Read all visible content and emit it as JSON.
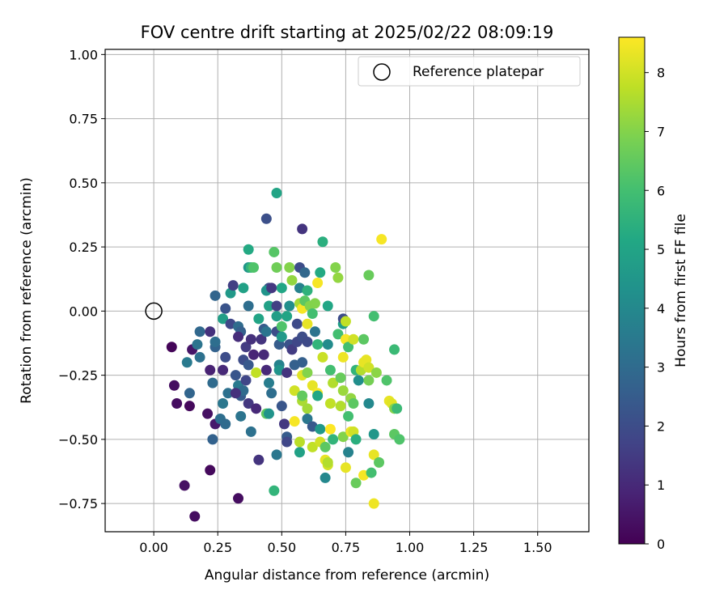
{
  "chart_data": {
    "type": "scatter",
    "title": "FOV centre drift starting at 2025/02/22 08:09:19",
    "xlabel": "Angular distance from reference (arcmin)",
    "ylabel": "Rotation from reference (arcmin)",
    "xlim": [
      -0.19,
      1.7
    ],
    "ylim": [
      -0.86,
      1.02
    ],
    "xticks": [
      0.0,
      0.25,
      0.5,
      0.75,
      1.0,
      1.25,
      1.5
    ],
    "xtick_labels": [
      "0.00",
      "0.25",
      "0.50",
      "0.75",
      "1.00",
      "1.25",
      "1.50"
    ],
    "yticks": [
      -0.75,
      -0.5,
      -0.25,
      0.0,
      0.25,
      0.5,
      0.75,
      1.0
    ],
    "ytick_labels": [
      "−0.75",
      "−0.50",
      "−0.25",
      "0.00",
      "0.25",
      "0.50",
      "0.75",
      "1.00"
    ],
    "grid": true,
    "legend": {
      "placement": "top-right",
      "entries": [
        "Reference platepar"
      ]
    },
    "reference_point": {
      "x": 0.0,
      "y": 0.0,
      "marker": "open-circle"
    },
    "colorbar": {
      "label": "Hours from first FF file",
      "colormap": "viridis",
      "range": [
        0,
        8.6
      ],
      "ticks": [
        0,
        1,
        2,
        3,
        4,
        5,
        6,
        7,
        8
      ],
      "tick_labels": [
        "0",
        "1",
        "2",
        "3",
        "4",
        "5",
        "6",
        "7",
        "8"
      ]
    },
    "points": [
      {
        "x": 0.07,
        "y": -0.14,
        "t": 0.1
      },
      {
        "x": 0.08,
        "y": -0.29,
        "t": 0.3
      },
      {
        "x": 0.09,
        "y": -0.36,
        "t": 0.3
      },
      {
        "x": 0.14,
        "y": -0.37,
        "t": 0.2
      },
      {
        "x": 0.12,
        "y": -0.68,
        "t": 0.4
      },
      {
        "x": 0.16,
        "y": -0.8,
        "t": 0.3
      },
      {
        "x": 0.22,
        "y": -0.62,
        "t": 0.2
      },
      {
        "x": 0.33,
        "y": -0.73,
        "t": 0.3
      },
      {
        "x": 0.15,
        "y": -0.15,
        "t": 0.5
      },
      {
        "x": 0.21,
        "y": -0.4,
        "t": 0.4
      },
      {
        "x": 0.24,
        "y": -0.44,
        "t": 0.6
      },
      {
        "x": 0.22,
        "y": -0.23,
        "t": 0.8
      },
      {
        "x": 0.18,
        "y": -0.18,
        "t": 3.2
      },
      {
        "x": 0.13,
        "y": -0.2,
        "t": 3.5
      },
      {
        "x": 0.14,
        "y": -0.32,
        "t": 2.8
      },
      {
        "x": 0.18,
        "y": -0.08,
        "t": 2.9
      },
      {
        "x": 0.17,
        "y": -0.13,
        "t": 3.3
      },
      {
        "x": 0.22,
        "y": -0.08,
        "t": 1.2
      },
      {
        "x": 0.24,
        "y": -0.14,
        "t": 2.7
      },
      {
        "x": 0.24,
        "y": -0.12,
        "t": 3.1
      },
      {
        "x": 0.23,
        "y": -0.28,
        "t": 3.0
      },
      {
        "x": 0.23,
        "y": -0.5,
        "t": 2.7
      },
      {
        "x": 0.26,
        "y": -0.42,
        "t": 3.1
      },
      {
        "x": 0.27,
        "y": -0.36,
        "t": 3.4
      },
      {
        "x": 0.28,
        "y": -0.44,
        "t": 3.0
      },
      {
        "x": 0.27,
        "y": -0.23,
        "t": 1.0
      },
      {
        "x": 0.28,
        "y": -0.18,
        "t": 2.0
      },
      {
        "x": 0.29,
        "y": -0.32,
        "t": 3.2
      },
      {
        "x": 0.24,
        "y": 0.06,
        "t": 2.8
      },
      {
        "x": 0.27,
        "y": -0.03,
        "t": 4.8
      },
      {
        "x": 0.28,
        "y": 0.01,
        "t": 2.2
      },
      {
        "x": 0.3,
        "y": 0.07,
        "t": 4.6
      },
      {
        "x": 0.31,
        "y": 0.1,
        "t": 1.6
      },
      {
        "x": 0.3,
        "y": -0.05,
        "t": 1.8
      },
      {
        "x": 0.33,
        "y": -0.06,
        "t": 3.0
      },
      {
        "x": 0.34,
        "y": -0.08,
        "t": 2.6
      },
      {
        "x": 0.33,
        "y": -0.1,
        "t": 1.1
      },
      {
        "x": 0.32,
        "y": -0.25,
        "t": 2.3
      },
      {
        "x": 0.33,
        "y": -0.29,
        "t": 3.5
      },
      {
        "x": 0.34,
        "y": -0.33,
        "t": 2.5
      },
      {
        "x": 0.35,
        "y": -0.31,
        "t": 3.0
      },
      {
        "x": 0.34,
        "y": -0.41,
        "t": 3.3
      },
      {
        "x": 0.32,
        "y": -0.32,
        "t": 1.2
      },
      {
        "x": 0.35,
        "y": -0.19,
        "t": 2.0
      },
      {
        "x": 0.36,
        "y": -0.14,
        "t": 1.5
      },
      {
        "x": 0.37,
        "y": -0.21,
        "t": 2.4
      },
      {
        "x": 0.36,
        "y": -0.27,
        "t": 1.8
      },
      {
        "x": 0.37,
        "y": -0.36,
        "t": 1.4
      },
      {
        "x": 0.35,
        "y": 0.09,
        "t": 4.9
      },
      {
        "x": 0.37,
        "y": 0.17,
        "t": 4.5
      },
      {
        "x": 0.37,
        "y": 0.24,
        "t": 5.2
      },
      {
        "x": 0.38,
        "y": 0.17,
        "t": 5.6
      },
      {
        "x": 0.39,
        "y": 0.17,
        "t": 6.2
      },
      {
        "x": 0.37,
        "y": 0.02,
        "t": 3.1
      },
      {
        "x": 0.38,
        "y": -0.11,
        "t": 1.2
      },
      {
        "x": 0.39,
        "y": -0.17,
        "t": 0.9
      },
      {
        "x": 0.38,
        "y": -0.47,
        "t": 3.2
      },
      {
        "x": 0.4,
        "y": -0.38,
        "t": 1.0
      },
      {
        "x": 0.41,
        "y": -0.58,
        "t": 1.3
      },
      {
        "x": 0.4,
        "y": -0.24,
        "t": 7.8
      },
      {
        "x": 0.41,
        "y": -0.03,
        "t": 5.0
      },
      {
        "x": 0.42,
        "y": -0.11,
        "t": 1.3
      },
      {
        "x": 0.43,
        "y": -0.17,
        "t": 1.0
      },
      {
        "x": 0.43,
        "y": -0.07,
        "t": 2.5
      },
      {
        "x": 0.44,
        "y": 0.36,
        "t": 2.1
      },
      {
        "x": 0.45,
        "y": 0.09,
        "t": 2.0
      },
      {
        "x": 0.44,
        "y": 0.08,
        "t": 4.4
      },
      {
        "x": 0.45,
        "y": 0.02,
        "t": 4.9
      },
      {
        "x": 0.44,
        "y": -0.08,
        "t": 3.3
      },
      {
        "x": 0.45,
        "y": -0.28,
        "t": 3.6
      },
      {
        "x": 0.46,
        "y": -0.32,
        "t": 3.1
      },
      {
        "x": 0.44,
        "y": -0.4,
        "t": 6.4
      },
      {
        "x": 0.45,
        "y": -0.4,
        "t": 4.4
      },
      {
        "x": 0.44,
        "y": -0.23,
        "t": 1.0
      },
      {
        "x": 0.46,
        "y": 0.09,
        "t": 1.4
      },
      {
        "x": 0.47,
        "y": 0.23,
        "t": 6.3
      },
      {
        "x": 0.47,
        "y": -0.7,
        "t": 5.6
      },
      {
        "x": 0.48,
        "y": -0.56,
        "t": 3.4
      },
      {
        "x": 0.48,
        "y": 0.46,
        "t": 5.0
      },
      {
        "x": 0.48,
        "y": 0.17,
        "t": 6.7
      },
      {
        "x": 0.48,
        "y": 0.02,
        "t": 1.6
      },
      {
        "x": 0.48,
        "y": -0.02,
        "t": 4.8
      },
      {
        "x": 0.48,
        "y": -0.08,
        "t": 2.0
      },
      {
        "x": 0.49,
        "y": -0.13,
        "t": 2.5
      },
      {
        "x": 0.49,
        "y": -0.21,
        "t": 3.8
      },
      {
        "x": 0.49,
        "y": -0.23,
        "t": 4.4
      },
      {
        "x": 0.5,
        "y": -0.1,
        "t": 4.6
      },
      {
        "x": 0.5,
        "y": -0.06,
        "t": 6.2
      },
      {
        "x": 0.5,
        "y": 0.09,
        "t": 5.1
      },
      {
        "x": 0.5,
        "y": -0.37,
        "t": 2.3
      },
      {
        "x": 0.51,
        "y": -0.44,
        "t": 1.4
      },
      {
        "x": 0.52,
        "y": -0.49,
        "t": 2.5
      },
      {
        "x": 0.52,
        "y": -0.51,
        "t": 1.8
      },
      {
        "x": 0.52,
        "y": -0.24,
        "t": 1.3
      },
      {
        "x": 0.53,
        "y": -0.13,
        "t": 2.2
      },
      {
        "x": 0.52,
        "y": -0.02,
        "t": 5.0
      },
      {
        "x": 0.53,
        "y": 0.02,
        "t": 4.2
      },
      {
        "x": 0.53,
        "y": 0.17,
        "t": 7.0
      },
      {
        "x": 0.54,
        "y": 0.12,
        "t": 7.2
      },
      {
        "x": 0.54,
        "y": -0.15,
        "t": 1.5
      },
      {
        "x": 0.55,
        "y": -0.21,
        "t": 2.6
      },
      {
        "x": 0.55,
        "y": -0.31,
        "t": 8.0
      },
      {
        "x": 0.55,
        "y": -0.43,
        "t": 8.5
      },
      {
        "x": 0.56,
        "y": -0.12,
        "t": 1.8
      },
      {
        "x": 0.56,
        "y": -0.05,
        "t": 1.9
      },
      {
        "x": 0.57,
        "y": 0.03,
        "t": 7.4
      },
      {
        "x": 0.57,
        "y": 0.17,
        "t": 2.0
      },
      {
        "x": 0.57,
        "y": 0.09,
        "t": 3.8
      },
      {
        "x": 0.57,
        "y": -0.55,
        "t": 4.9
      },
      {
        "x": 0.57,
        "y": -0.51,
        "t": 7.7
      },
      {
        "x": 0.58,
        "y": -0.35,
        "t": 7.5
      },
      {
        "x": 0.58,
        "y": -0.25,
        "t": 8.2
      },
      {
        "x": 0.58,
        "y": -0.33,
        "t": 6.5
      },
      {
        "x": 0.58,
        "y": -0.2,
        "t": 2.6
      },
      {
        "x": 0.58,
        "y": -0.1,
        "t": 2.0
      },
      {
        "x": 0.58,
        "y": 0.01,
        "t": 8.5
      },
      {
        "x": 0.58,
        "y": 0.32,
        "t": 1.3
      },
      {
        "x": 0.59,
        "y": 0.15,
        "t": 2.9
      },
      {
        "x": 0.59,
        "y": 0.04,
        "t": 6.4
      },
      {
        "x": 0.6,
        "y": -0.05,
        "t": 8.3
      },
      {
        "x": 0.6,
        "y": -0.12,
        "t": 1.9
      },
      {
        "x": 0.6,
        "y": -0.24,
        "t": 7.0
      },
      {
        "x": 0.6,
        "y": -0.38,
        "t": 7.4
      },
      {
        "x": 0.6,
        "y": -0.42,
        "t": 3.4
      },
      {
        "x": 0.6,
        "y": 0.08,
        "t": 5.5
      },
      {
        "x": 0.61,
        "y": 0.02,
        "t": 7.0
      },
      {
        "x": 0.62,
        "y": -0.01,
        "t": 6.0
      },
      {
        "x": 0.62,
        "y": -0.29,
        "t": 8.3
      },
      {
        "x": 0.62,
        "y": -0.53,
        "t": 7.8
      },
      {
        "x": 0.62,
        "y": -0.45,
        "t": 2.4
      },
      {
        "x": 0.63,
        "y": 0.03,
        "t": 7.0
      },
      {
        "x": 0.63,
        "y": -0.08,
        "t": 3.3
      },
      {
        "x": 0.64,
        "y": 0.11,
        "t": 8.5
      },
      {
        "x": 0.64,
        "y": -0.13,
        "t": 5.6
      },
      {
        "x": 0.64,
        "y": -0.32,
        "t": 8.5
      },
      {
        "x": 0.64,
        "y": -0.33,
        "t": 5.1
      },
      {
        "x": 0.65,
        "y": -0.51,
        "t": 8.0
      },
      {
        "x": 0.65,
        "y": -0.46,
        "t": 4.6
      },
      {
        "x": 0.65,
        "y": 0.15,
        "t": 5.2
      },
      {
        "x": 0.66,
        "y": 0.27,
        "t": 5.4
      },
      {
        "x": 0.66,
        "y": -0.18,
        "t": 7.9
      },
      {
        "x": 0.67,
        "y": -0.58,
        "t": 8.3
      },
      {
        "x": 0.67,
        "y": -0.65,
        "t": 4.0
      },
      {
        "x": 0.67,
        "y": -0.53,
        "t": 6.4
      },
      {
        "x": 0.68,
        "y": -0.6,
        "t": 8.0
      },
      {
        "x": 0.68,
        "y": -0.59,
        "t": 7.6
      },
      {
        "x": 0.68,
        "y": 0.02,
        "t": 5.1
      },
      {
        "x": 0.68,
        "y": -0.13,
        "t": 4.1
      },
      {
        "x": 0.69,
        "y": -0.23,
        "t": 6.0
      },
      {
        "x": 0.69,
        "y": -0.36,
        "t": 7.8
      },
      {
        "x": 0.69,
        "y": -0.46,
        "t": 8.6
      },
      {
        "x": 0.7,
        "y": -0.5,
        "t": 5.6
      },
      {
        "x": 0.7,
        "y": -0.28,
        "t": 7.6
      },
      {
        "x": 0.71,
        "y": 0.17,
        "t": 7.0
      },
      {
        "x": 0.72,
        "y": -0.09,
        "t": 6.0
      },
      {
        "x": 0.72,
        "y": 0.13,
        "t": 7.2
      },
      {
        "x": 0.73,
        "y": -0.26,
        "t": 6.6
      },
      {
        "x": 0.73,
        "y": -0.37,
        "t": 7.6
      },
      {
        "x": 0.74,
        "y": -0.31,
        "t": 7.3
      },
      {
        "x": 0.74,
        "y": -0.18,
        "t": 8.4
      },
      {
        "x": 0.74,
        "y": -0.05,
        "t": 4.8
      },
      {
        "x": 0.74,
        "y": -0.03,
        "t": 2.0
      },
      {
        "x": 0.74,
        "y": -0.49,
        "t": 7.0
      },
      {
        "x": 0.75,
        "y": -0.61,
        "t": 8.3
      },
      {
        "x": 0.75,
        "y": -0.11,
        "t": 8.5
      },
      {
        "x": 0.75,
        "y": -0.04,
        "t": 7.8
      },
      {
        "x": 0.76,
        "y": -0.55,
        "t": 3.8
      },
      {
        "x": 0.76,
        "y": -0.41,
        "t": 6.0
      },
      {
        "x": 0.76,
        "y": -0.14,
        "t": 6.0
      },
      {
        "x": 0.77,
        "y": -0.34,
        "t": 7.2
      },
      {
        "x": 0.77,
        "y": -0.47,
        "t": 8.4
      },
      {
        "x": 0.78,
        "y": -0.11,
        "t": 8.0
      },
      {
        "x": 0.78,
        "y": -0.36,
        "t": 6.4
      },
      {
        "x": 0.78,
        "y": -0.47,
        "t": 8.0
      },
      {
        "x": 0.79,
        "y": -0.5,
        "t": 5.4
      },
      {
        "x": 0.79,
        "y": -0.23,
        "t": 5.6
      },
      {
        "x": 0.79,
        "y": -0.67,
        "t": 6.6
      },
      {
        "x": 0.8,
        "y": -0.27,
        "t": 4.2
      },
      {
        "x": 0.81,
        "y": -0.23,
        "t": 7.6
      },
      {
        "x": 0.82,
        "y": -0.2,
        "t": 8.3
      },
      {
        "x": 0.82,
        "y": -0.11,
        "t": 6.4
      },
      {
        "x": 0.82,
        "y": -0.64,
        "t": 8.5
      },
      {
        "x": 0.83,
        "y": -0.19,
        "t": 8.3
      },
      {
        "x": 0.84,
        "y": -0.22,
        "t": 8.0
      },
      {
        "x": 0.84,
        "y": 0.14,
        "t": 6.6
      },
      {
        "x": 0.84,
        "y": -0.36,
        "t": 4.0
      },
      {
        "x": 0.84,
        "y": -0.27,
        "t": 6.8
      },
      {
        "x": 0.85,
        "y": -0.63,
        "t": 6.0
      },
      {
        "x": 0.86,
        "y": -0.56,
        "t": 8.3
      },
      {
        "x": 0.86,
        "y": -0.48,
        "t": 4.5
      },
      {
        "x": 0.86,
        "y": -0.75,
        "t": 8.4
      },
      {
        "x": 0.86,
        "y": -0.02,
        "t": 6.0
      },
      {
        "x": 0.87,
        "y": -0.24,
        "t": 7.1
      },
      {
        "x": 0.88,
        "y": -0.59,
        "t": 6.4
      },
      {
        "x": 0.89,
        "y": 0.28,
        "t": 8.5
      },
      {
        "x": 0.91,
        "y": -0.27,
        "t": 6.2
      },
      {
        "x": 0.92,
        "y": -0.35,
        "t": 8.3
      },
      {
        "x": 0.93,
        "y": -0.36,
        "t": 8.2
      },
      {
        "x": 0.94,
        "y": -0.15,
        "t": 5.8
      },
      {
        "x": 0.94,
        "y": -0.48,
        "t": 6.4
      },
      {
        "x": 0.94,
        "y": -0.38,
        "t": 7.0
      },
      {
        "x": 0.95,
        "y": -0.38,
        "t": 5.8
      },
      {
        "x": 0.96,
        "y": -0.5,
        "t": 6.2
      }
    ]
  }
}
